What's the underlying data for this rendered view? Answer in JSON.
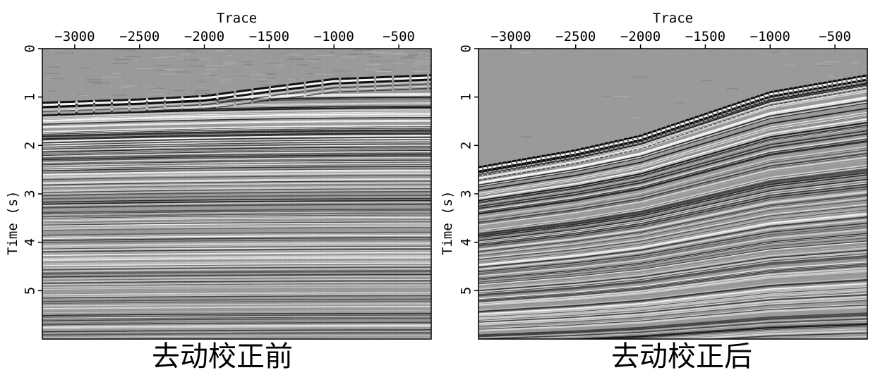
{
  "chart_data": [
    {
      "type": "heatmap",
      "plot_kind": "seismic wiggle-density section (grayscale)",
      "title": "去动校正前",
      "xlabel": "Trace",
      "ylabel": "Time (s)",
      "x_axis_position": "top",
      "xlim": [
        -3250,
        -250
      ],
      "ylim": [
        0,
        6
      ],
      "y_inverted": true,
      "xticks": [
        -3000,
        -2500,
        -2000,
        -1500,
        -1000,
        -500
      ],
      "xtick_labels": [
        "−3000",
        "−2500",
        "−2000",
        "−1500",
        "−1000",
        "−500"
      ],
      "yticks": [
        0,
        1,
        2,
        3,
        4,
        5
      ],
      "ytick_labels": [
        "0",
        "1",
        "2",
        "3",
        "4",
        "5"
      ],
      "first_arrival_time_s": [
        {
          "trace": -3250,
          "time": 1.12
        },
        {
          "trace": -2500,
          "time": 1.05
        },
        {
          "trace": -2000,
          "time": 0.98
        },
        {
          "trace": -1500,
          "time": 0.8
        },
        {
          "trace": -1000,
          "time": 0.63
        },
        {
          "trace": -250,
          "time": 0.55
        }
      ],
      "grid": false
    },
    {
      "type": "heatmap",
      "plot_kind": "seismic wiggle-density section (grayscale)",
      "title": "去动校正后",
      "xlabel": "Trace",
      "ylabel": "Time (s)",
      "x_axis_position": "top",
      "xlim": [
        -3250,
        -250
      ],
      "ylim": [
        0,
        6
      ],
      "y_inverted": true,
      "xticks": [
        -3000,
        -2500,
        -2000,
        -1500,
        -1000,
        -500
      ],
      "xtick_labels": [
        "−3000",
        "−2500",
        "−2000",
        "−1500",
        "−1000",
        "−500"
      ],
      "yticks": [
        0,
        1,
        2,
        3,
        4,
        5
      ],
      "ytick_labels": [
        "0",
        "1",
        "2",
        "3",
        "4",
        "5"
      ],
      "first_arrival_time_s": [
        {
          "trace": -3250,
          "time": 2.45
        },
        {
          "trace": -2500,
          "time": 2.1
        },
        {
          "trace": -2000,
          "time": 1.8
        },
        {
          "trace": -1500,
          "time": 1.35
        },
        {
          "trace": -1000,
          "time": 0.9
        },
        {
          "trace": -250,
          "time": 0.55
        }
      ],
      "grid": false
    }
  ],
  "colors": {
    "background_gray": "#9a9a9a",
    "event_dark": "#0a0a0a",
    "event_light": "#ffffff"
  }
}
